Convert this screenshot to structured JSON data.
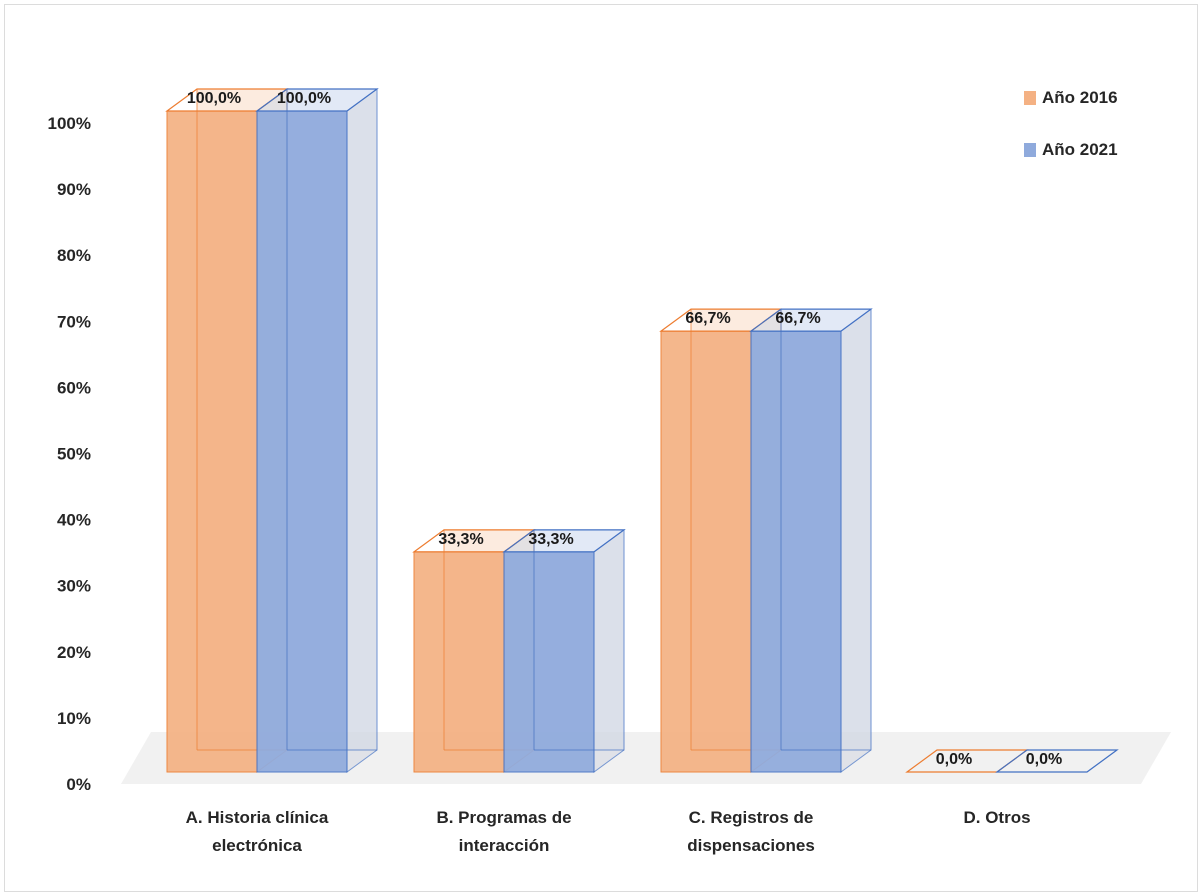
{
  "chart_data": {
    "type": "bar",
    "categories": [
      [
        "A. Historia clínica",
        "electrónica"
      ],
      [
        "B. Programas de",
        "interacción"
      ],
      [
        "C. Registros de",
        "dispensaciones"
      ],
      [
        "D. Otros"
      ]
    ],
    "series": [
      {
        "name": "Año 2016",
        "values": [
          100.0,
          33.3,
          66.7,
          0.0
        ],
        "labels": [
          "100,0%",
          "33,3%",
          "66,7%",
          "0,0%"
        ],
        "color": "#F4B183",
        "edge": "#ED7D31"
      },
      {
        "name": "Año 2021",
        "values": [
          100.0,
          33.3,
          66.7,
          0.0
        ],
        "labels": [
          "100,0%",
          "33,3%",
          "66,7%",
          "0,0%"
        ],
        "color": "#8FAADC",
        "edge": "#4472C4"
      }
    ],
    "yticks": [
      "0%",
      "10%",
      "20%",
      "30%",
      "40%",
      "50%",
      "60%",
      "70%",
      "80%",
      "90%",
      "100%"
    ],
    "ylim": [
      0,
      100
    ],
    "grid": false,
    "legend_position": "top-right",
    "style": "3d-clustered-column"
  }
}
